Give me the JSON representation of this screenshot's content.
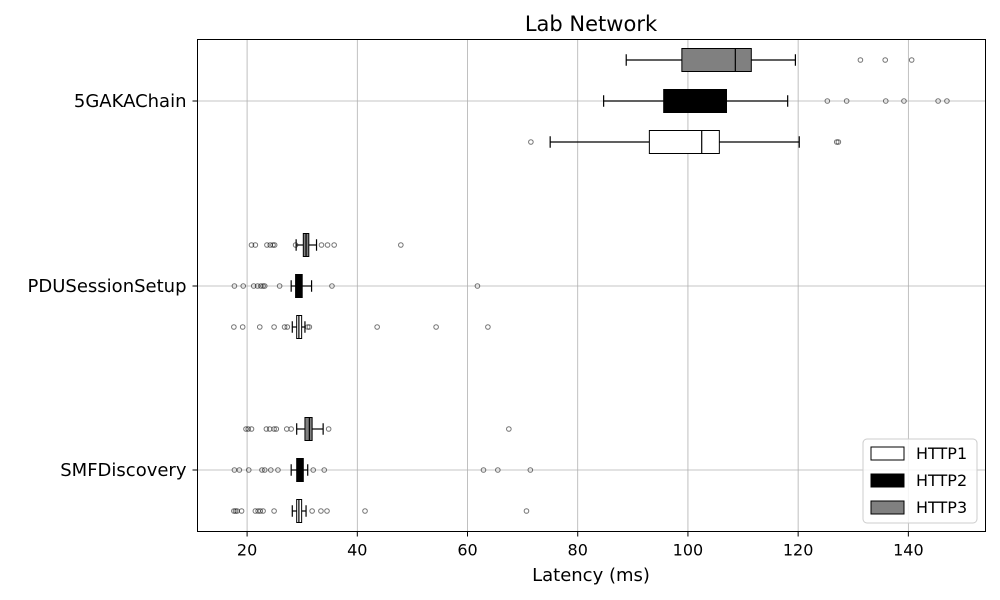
{
  "chart_data": {
    "type": "boxplot",
    "orientation": "horizontal",
    "title": "Lab Network",
    "xlabel": "Latency (ms)",
    "ylabel": "",
    "xlim": [
      11,
      154
    ],
    "xticks": [
      20,
      40,
      60,
      80,
      100,
      120,
      140
    ],
    "grid": true,
    "legend_position": "lower-right",
    "categories": [
      "5GAKAChain",
      "PDUSessionSetup",
      "SMFDiscovery"
    ],
    "series": [
      {
        "name": "HTTP1",
        "color": "#ffffff",
        "boxes": [
          {
            "whisker_low": 75.0,
            "q1": 93.0,
            "median": 102.5,
            "q3": 105.7,
            "whisker_high": 120.2,
            "outliers": [
              71.5,
              127.0,
              127.3
            ]
          },
          {
            "whisker_low": 28.2,
            "q1": 29.0,
            "median": 29.4,
            "q3": 29.9,
            "whisker_high": 30.5,
            "outliers": [
              17.6,
              19.2,
              22.3,
              24.9,
              26.8,
              27.3,
              31.0,
              31.3,
              43.6,
              54.3,
              63.7
            ]
          },
          {
            "whisker_low": 28.2,
            "q1": 29.0,
            "median": 29.4,
            "q3": 29.9,
            "whisker_high": 30.7,
            "outliers": [
              17.6,
              17.9,
              18.2,
              19.0,
              21.5,
              22.0,
              22.4,
              22.9,
              24.9,
              31.8,
              33.4,
              34.5,
              41.4,
              70.7
            ]
          }
        ]
      },
      {
        "name": "HTTP2",
        "color": "#000000",
        "boxes": [
          {
            "whisker_low": 84.7,
            "q1": 95.6,
            "median": 102.7,
            "q3": 107.0,
            "whisker_high": 118.1,
            "outliers": [
              125.3,
              128.8,
              135.9,
              139.2,
              145.4,
              147.0
            ]
          },
          {
            "whisker_low": 28.0,
            "q1": 28.8,
            "median": 29.3,
            "q3": 30.0,
            "whisker_high": 31.7,
            "outliers": [
              17.7,
              19.3,
              21.2,
              21.9,
              22.5,
              22.9,
              23.2,
              25.9,
              35.4,
              61.8
            ]
          },
          {
            "whisker_low": 28.0,
            "q1": 29.0,
            "median": 29.6,
            "q3": 30.2,
            "whisker_high": 31.0,
            "outliers": [
              17.7,
              18.6,
              20.3,
              22.7,
              23.2,
              24.3,
              25.6,
              32.0,
              34.0,
              62.9,
              65.5,
              71.4
            ]
          }
        ]
      },
      {
        "name": "HTTP3",
        "color": "#808080",
        "boxes": [
          {
            "whisker_low": 88.8,
            "q1": 98.9,
            "median": 108.6,
            "q3": 111.5,
            "whisker_high": 119.5,
            "outliers": [
              131.3,
              135.8,
              140.6
            ]
          },
          {
            "whisker_low": 28.9,
            "q1": 30.2,
            "median": 30.7,
            "q3": 31.2,
            "whisker_high": 32.6,
            "outliers": [
              20.8,
              21.5,
              23.6,
              24.2,
              24.7,
              25.0,
              28.8,
              33.5,
              34.6,
              35.8,
              47.9
            ]
          },
          {
            "whisker_low": 29.0,
            "q1": 30.5,
            "median": 31.3,
            "q3": 31.8,
            "whisker_high": 33.8,
            "outliers": [
              19.8,
              20.2,
              20.8,
              23.5,
              24.1,
              24.9,
              25.3,
              27.2,
              28.0,
              34.8,
              67.5
            ]
          }
        ]
      }
    ]
  }
}
